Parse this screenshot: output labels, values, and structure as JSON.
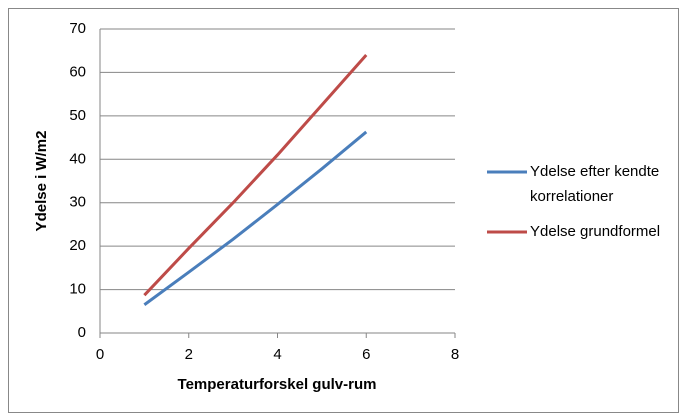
{
  "chart_data": {
    "type": "line",
    "xlabel": "Temperaturforskel gulv-rum",
    "ylabel": "Ydelse i W/m2",
    "x": [
      1,
      2,
      3,
      4,
      5,
      6
    ],
    "series": [
      {
        "name": "Ydelse efter kendte korrelationer",
        "color": "#4a7ebb",
        "values": [
          6.5,
          14,
          21.6,
          29.6,
          37.8,
          46.3
        ]
      },
      {
        "name": "Ydelse grundformel",
        "color": "#be4b48",
        "values": [
          8.7,
          19.5,
          30,
          41,
          52.5,
          64
        ]
      }
    ],
    "xlim": [
      0,
      8
    ],
    "xticks": [
      0,
      2,
      4,
      6,
      8
    ],
    "ylim": [
      0,
      70
    ],
    "yticks": [
      0,
      10,
      20,
      30,
      40,
      50,
      60,
      70
    ],
    "grid": true,
    "legend": "right"
  }
}
